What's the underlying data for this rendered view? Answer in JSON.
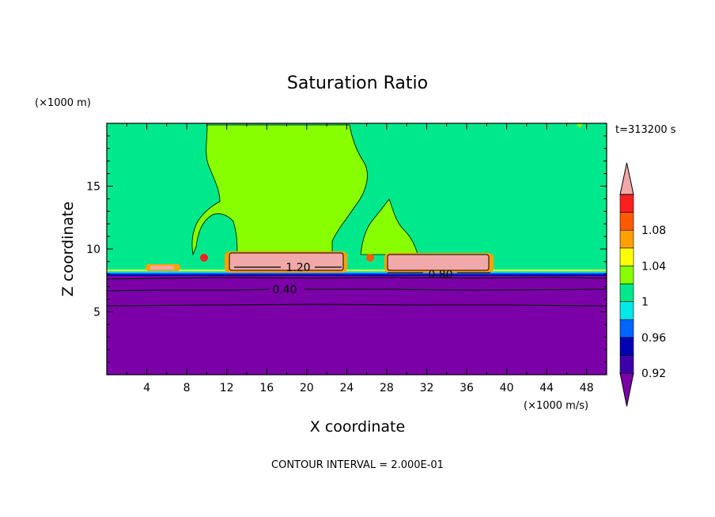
{
  "chart_data": {
    "type": "contour",
    "title": "Saturation Ratio",
    "xlabel": "X coordinate",
    "ylabel": "Z coordinate",
    "x_unit_label": "(×1000 m/s)",
    "y_unit_label": "(×1000 m)",
    "time_label": "t=313200 s",
    "contour_interval_label": "CONTOUR INTERVAL = 2.000E-01",
    "xlim": [
      0,
      50
    ],
    "ylim": [
      0,
      20
    ],
    "x_ticks": [
      "4",
      "8",
      "12",
      "16",
      "20",
      "24",
      "28",
      "32",
      "36",
      "40",
      "44",
      "48"
    ],
    "y_ticks": [
      "5",
      "10",
      "15"
    ],
    "contour_labels": [
      "1.20",
      "0.80",
      "0.40"
    ],
    "colorbar": {
      "labels": [
        "1.08",
        "1.04",
        "1",
        "0.96",
        "0.92"
      ],
      "colors": [
        "#7b00a8",
        "#3d00a8",
        "#0000b4",
        "#0064ff",
        "#00e8e8",
        "#00e88c",
        "#88ff00",
        "#ffff00",
        "#ffa000",
        "#ff5a00",
        "#ff1e1e",
        "#f0a8a8"
      ]
    },
    "grid": false,
    "legend": "colorbar-right"
  }
}
